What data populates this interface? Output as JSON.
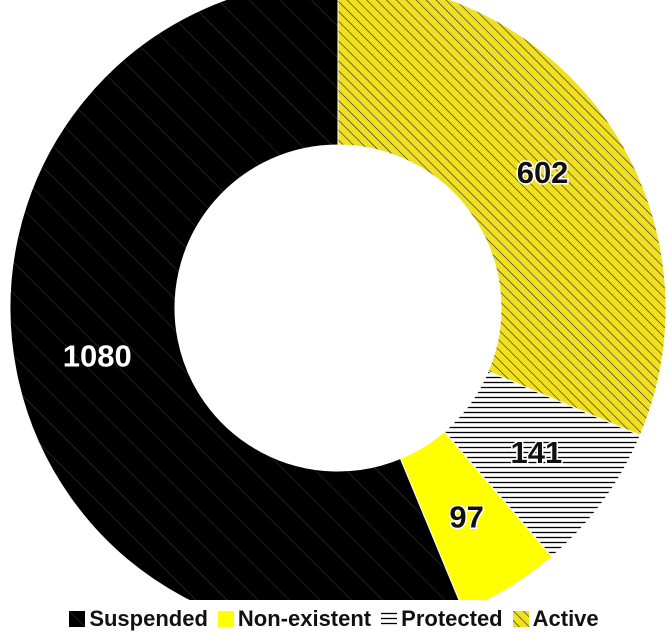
{
  "chart_data": {
    "type": "pie",
    "title": "",
    "donut": true,
    "legend_position": "bottom",
    "slices": [
      {
        "label": "Active",
        "value": 602,
        "color": "#f0e020",
        "pattern": "diagonal-hatch-dense"
      },
      {
        "label": "Protected",
        "value": 141,
        "color": "#000000",
        "pattern": "horizontal-lines"
      },
      {
        "label": "Non-existent",
        "value": 97,
        "color": "#ffff00",
        "pattern": "solid"
      },
      {
        "label": "Suspended",
        "value": 1080,
        "color": "#000000",
        "pattern": "diagonal-hatch-sparse"
      }
    ],
    "legend_order": [
      "Suspended",
      "Non-existent",
      "Protected",
      "Active"
    ]
  }
}
